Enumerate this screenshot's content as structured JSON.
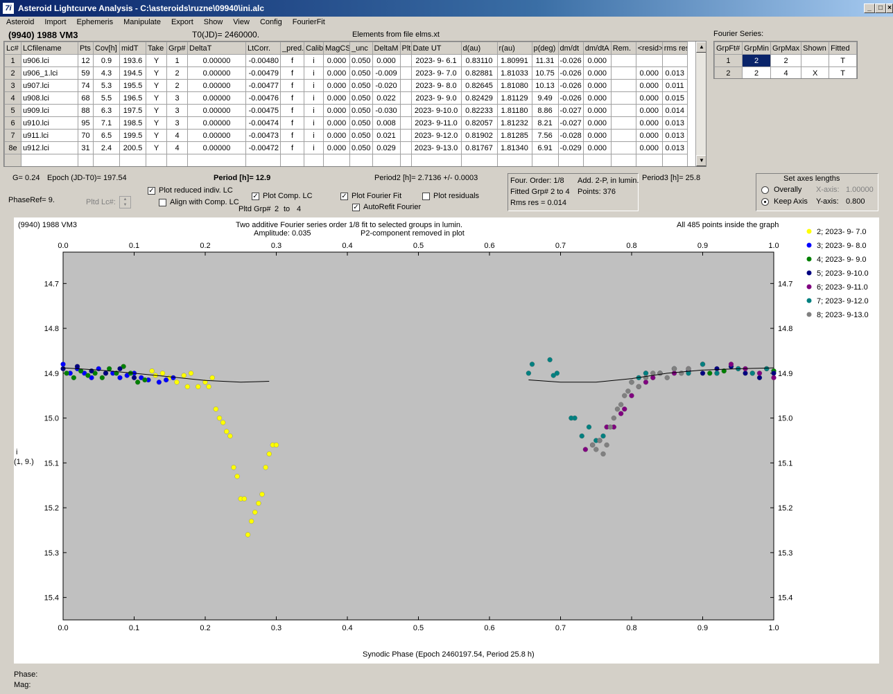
{
  "window": {
    "title": "Asteroid Lightcurve Analysis - C:\\asteroids\\ruzne\\09940\\ini.alc",
    "icon_glyph": "7i",
    "minimize": "_",
    "maximize": "□",
    "close": "×"
  },
  "menu": [
    "Asteroid",
    "Import",
    "Ephemeris",
    "Manipulate",
    "Export",
    "Show",
    "View",
    "Config",
    "FourierFit"
  ],
  "header": {
    "asteroid": "(9940) 1988 VM3",
    "t0": "T0(JD)= 2460000.",
    "elements": "Elements from file elms.xt",
    "fourier_label": "Fourier Series:"
  },
  "lc_table": {
    "columns": [
      "Lc#",
      "LCfilename",
      "Pts",
      "Cov[h]",
      "midT",
      "Take",
      "Grp#",
      "DeltaT",
      "LtCorr.",
      "_pred.",
      "Calib.",
      "MagCS",
      "_unc",
      "DeltaM",
      "Plt",
      "Date UT",
      "d(au)",
      "r(au)",
      "p(deg)",
      "dm/dt",
      "dm/dtA",
      "Rem.",
      "<resid>",
      "rms res"
    ],
    "rows": [
      [
        "1",
        "u906.lci",
        "12",
        "0.9",
        "193.6",
        "Y",
        "1",
        "0.00000",
        "-0.00480",
        "f",
        "i",
        "0.000",
        "0.050",
        "0.000",
        "",
        "2023- 9- 6.1",
        "0.83110",
        "1.80991",
        "11.31",
        "-0.026",
        "0.000",
        "",
        "",
        ""
      ],
      [
        "2",
        "u906_1.lci",
        "59",
        "4.3",
        "194.5",
        "Y",
        "2",
        "0.00000",
        "-0.00479",
        "f",
        "i",
        "0.000",
        "0.050",
        "-0.009",
        "",
        "2023- 9- 7.0",
        "0.82881",
        "1.81033",
        "10.75",
        "-0.026",
        "0.000",
        "",
        "0.000",
        "0.013"
      ],
      [
        "3",
        "u907.lci",
        "74",
        "5.3",
        "195.5",
        "Y",
        "2",
        "0.00000",
        "-0.00477",
        "f",
        "i",
        "0.000",
        "0.050",
        "-0.020",
        "",
        "2023- 9- 8.0",
        "0.82645",
        "1.81080",
        "10.13",
        "-0.026",
        "0.000",
        "",
        "0.000",
        "0.011"
      ],
      [
        "4",
        "u908.lci",
        "68",
        "5.5",
        "196.5",
        "Y",
        "3",
        "0.00000",
        "-0.00476",
        "f",
        "i",
        "0.000",
        "0.050",
        "0.022",
        "",
        "2023- 9- 9.0",
        "0.82429",
        "1.81129",
        "9.49",
        "-0.026",
        "0.000",
        "",
        "0.000",
        "0.015"
      ],
      [
        "5",
        "u909.lci",
        "88",
        "6.3",
        "197.5",
        "Y",
        "3",
        "0.00000",
        "-0.00475",
        "f",
        "i",
        "0.000",
        "0.050",
        "-0.030",
        "",
        "2023- 9-10.0",
        "0.82233",
        "1.81180",
        "8.86",
        "-0.027",
        "0.000",
        "",
        "0.000",
        "0.014"
      ],
      [
        "6",
        "u910.lci",
        "95",
        "7.1",
        "198.5",
        "Y",
        "3",
        "0.00000",
        "-0.00474",
        "f",
        "i",
        "0.000",
        "0.050",
        "0.008",
        "",
        "2023- 9-11.0",
        "0.82057",
        "1.81232",
        "8.21",
        "-0.027",
        "0.000",
        "",
        "0.000",
        "0.013"
      ],
      [
        "7",
        "u911.lci",
        "70",
        "6.5",
        "199.5",
        "Y",
        "4",
        "0.00000",
        "-0.00473",
        "f",
        "i",
        "0.000",
        "0.050",
        "0.021",
        "",
        "2023- 9-12.0",
        "0.81902",
        "1.81285",
        "7.56",
        "-0.028",
        "0.000",
        "",
        "0.000",
        "0.013"
      ],
      [
        "8e",
        "u912.lci",
        "31",
        "2.4",
        "200.5",
        "Y",
        "4",
        "0.00000",
        "-0.00472",
        "f",
        "i",
        "0.000",
        "0.050",
        "0.029",
        "",
        "2023- 9-13.0",
        "0.81767",
        "1.81340",
        "6.91",
        "-0.029",
        "0.000",
        "",
        "0.000",
        "0.013"
      ]
    ]
  },
  "fourier_table": {
    "columns": [
      "GrpFt#",
      "GrpMin",
      "GrpMax",
      "Shown",
      "Fitted"
    ],
    "rows": [
      [
        "1",
        "2",
        "2",
        "",
        "T"
      ],
      [
        "2",
        "2",
        "4",
        "X",
        "T"
      ]
    ]
  },
  "controls": {
    "g": "G= 0.24",
    "epoch": "Epoch (JD-T0)= 197.54",
    "period": "Period [h]= 12.9",
    "period2": "Period2 [h]= 2.7136 +/- 0.0003",
    "period3": "Period3 [h]= 25.8",
    "phaseref": "PhaseRef= 9.",
    "pltd_lc": "Pltd Lc#:",
    "plot_reduced": "Plot reduced indiv. LC",
    "align_comp": "Align with Comp. LC",
    "plot_comp": "Plot Comp. LC",
    "pltd_grp": "Pltd Grp#",
    "grp_from": "2",
    "grp_to_word": "to",
    "grp_to": "4",
    "plot_fourier": "Plot Fourier Fit",
    "autorefit": "AutoRefit Fourier",
    "plot_residuals": "Plot residuals",
    "check_mark": "✓",
    "four_order": "Four. Order:  1/8",
    "add2p": "Add. 2-P, in lumin.",
    "fitted_grp": "Fitted Grp# 2 to 4",
    "points": "Points: 376",
    "rms_res": "Rms res      = 0.014",
    "axes_title": "Set axes lengths",
    "overally": "Overally",
    "keep_axis": "Keep Axis",
    "xaxis_label": "X-axis:",
    "xaxis_val": "1.00000",
    "yaxis_label": "Y-axis:",
    "yaxis_val": "0.800"
  },
  "plot": {
    "title_left": "(9940) 1988 VM3",
    "title_center1": "Two additive Fourier series order 1/8 fit to selected groups in lumin.",
    "title_center2a": "Amplitude: 0.035",
    "title_center2b": "P2-component removed in plot",
    "title_right": "All 485 points inside the graph",
    "ylabel1": "i",
    "ylabel2": "(1, 9.)",
    "xlabel": "Synodic Phase (Epoch 2460197.54, Period 25.8 h)",
    "status_phase": "Phase:",
    "status_mag": "Mag:"
  },
  "chart_data": {
    "type": "scatter",
    "x_ticks": [
      "0.0",
      "0.1",
      "0.2",
      "0.3",
      "0.4",
      "0.5",
      "0.6",
      "0.7",
      "0.8",
      "0.9",
      "1.0"
    ],
    "y_ticks": [
      "14.7",
      "14.8",
      "14.9",
      "15.0",
      "15.1",
      "15.2",
      "15.3",
      "15.4"
    ],
    "xlim": [
      0,
      1
    ],
    "ylim": [
      15.45,
      14.63
    ],
    "series": [
      {
        "name": "2; 2023- 9- 7.0",
        "color": "#ffff00",
        "points": [
          [
            0.125,
            14.895
          ],
          [
            0.13,
            14.905
          ],
          [
            0.14,
            14.9
          ],
          [
            0.15,
            14.91
          ],
          [
            0.16,
            14.92
          ],
          [
            0.17,
            14.905
          ],
          [
            0.175,
            14.93
          ],
          [
            0.18,
            14.9
          ],
          [
            0.19,
            14.93
          ],
          [
            0.2,
            14.92
          ],
          [
            0.205,
            14.93
          ],
          [
            0.21,
            14.91
          ],
          [
            0.215,
            14.98
          ],
          [
            0.22,
            15.0
          ],
          [
            0.225,
            15.01
          ],
          [
            0.23,
            15.03
          ],
          [
            0.235,
            15.04
          ],
          [
            0.24,
            15.11
          ],
          [
            0.245,
            15.13
          ],
          [
            0.25,
            15.18
          ],
          [
            0.255,
            15.18
          ],
          [
            0.26,
            15.26
          ],
          [
            0.265,
            15.23
          ],
          [
            0.27,
            15.21
          ],
          [
            0.275,
            15.19
          ],
          [
            0.28,
            15.17
          ],
          [
            0.285,
            15.11
          ],
          [
            0.29,
            15.08
          ],
          [
            0.295,
            15.06
          ],
          [
            0.3,
            15.06
          ]
        ]
      },
      {
        "name": "3; 2023- 9- 8.0",
        "color": "#0000ff",
        "points": [
          [
            0.0,
            14.88
          ],
          [
            0.01,
            14.9
          ],
          [
            0.02,
            14.89
          ],
          [
            0.03,
            14.9
          ],
          [
            0.04,
            14.91
          ],
          [
            0.05,
            14.89
          ],
          [
            0.06,
            14.9
          ],
          [
            0.07,
            14.9
          ],
          [
            0.08,
            14.91
          ],
          [
            0.09,
            14.905
          ],
          [
            0.1,
            14.9
          ],
          [
            0.11,
            14.91
          ],
          [
            0.12,
            14.915
          ],
          [
            0.135,
            14.92
          ],
          [
            0.145,
            14.915
          ],
          [
            0.155,
            14.91
          ]
        ]
      },
      {
        "name": "4; 2023- 9- 9.0",
        "color": "#008000",
        "points": [
          [
            0.005,
            14.9
          ],
          [
            0.015,
            14.91
          ],
          [
            0.025,
            14.895
          ],
          [
            0.035,
            14.905
          ],
          [
            0.045,
            14.9
          ],
          [
            0.055,
            14.91
          ],
          [
            0.065,
            14.89
          ],
          [
            0.075,
            14.9
          ],
          [
            0.085,
            14.885
          ],
          [
            0.095,
            14.9
          ],
          [
            0.105,
            14.92
          ],
          [
            0.115,
            14.915
          ],
          [
            0.91,
            14.9
          ],
          [
            0.93,
            14.895
          ],
          [
            0.95,
            14.89
          ],
          [
            0.97,
            14.9
          ],
          [
            0.99,
            14.89
          ],
          [
            1.0,
            14.895
          ]
        ]
      },
      {
        "name": "5; 2023- 9-10.0",
        "color": "#000080",
        "points": [
          [
            0.0,
            14.89
          ],
          [
            0.02,
            14.885
          ],
          [
            0.04,
            14.895
          ],
          [
            0.06,
            14.9
          ],
          [
            0.08,
            14.89
          ],
          [
            0.1,
            14.91
          ],
          [
            0.82,
            14.9
          ],
          [
            0.84,
            14.9
          ],
          [
            0.86,
            14.89
          ],
          [
            0.88,
            14.895
          ],
          [
            0.9,
            14.9
          ],
          [
            0.92,
            14.89
          ],
          [
            0.94,
            14.885
          ],
          [
            0.96,
            14.9
          ],
          [
            0.98,
            14.91
          ],
          [
            1.0,
            14.9
          ]
        ]
      },
      {
        "name": "6; 2023- 9-11.0",
        "color": "#800080",
        "points": [
          [
            0.735,
            15.07
          ],
          [
            0.745,
            15.06
          ],
          [
            0.755,
            15.05
          ],
          [
            0.765,
            15.02
          ],
          [
            0.775,
            15.02
          ],
          [
            0.785,
            14.99
          ],
          [
            0.79,
            14.98
          ],
          [
            0.8,
            14.95
          ],
          [
            0.81,
            14.93
          ],
          [
            0.82,
            14.92
          ],
          [
            0.83,
            14.91
          ],
          [
            0.84,
            14.9
          ],
          [
            0.86,
            14.9
          ],
          [
            0.88,
            14.89
          ],
          [
            0.9,
            14.88
          ],
          [
            0.92,
            14.9
          ],
          [
            0.94,
            14.88
          ],
          [
            0.96,
            14.89
          ],
          [
            0.98,
            14.9
          ],
          [
            1.0,
            14.91
          ]
        ]
      },
      {
        "name": "7; 2023- 9-12.0",
        "color": "#008080",
        "points": [
          [
            0.655,
            14.9
          ],
          [
            0.66,
            14.88
          ],
          [
            0.685,
            14.87
          ],
          [
            0.69,
            14.905
          ],
          [
            0.695,
            14.9
          ],
          [
            0.715,
            15.0
          ],
          [
            0.72,
            15.0
          ],
          [
            0.73,
            15.04
          ],
          [
            0.74,
            15.02
          ],
          [
            0.75,
            15.05
          ],
          [
            0.76,
            15.04
          ],
          [
            0.8,
            14.92
          ],
          [
            0.81,
            14.91
          ],
          [
            0.82,
            14.9
          ],
          [
            0.84,
            14.9
          ],
          [
            0.86,
            14.89
          ],
          [
            0.88,
            14.9
          ],
          [
            0.9,
            14.88
          ],
          [
            0.92,
            14.9
          ],
          [
            0.95,
            14.89
          ],
          [
            0.97,
            14.9
          ],
          [
            0.99,
            14.89
          ]
        ]
      },
      {
        "name": "8; 2023- 9-13.0",
        "color": "#808080",
        "points": [
          [
            0.745,
            15.06
          ],
          [
            0.75,
            15.07
          ],
          [
            0.755,
            15.05
          ],
          [
            0.76,
            15.08
          ],
          [
            0.765,
            15.06
          ],
          [
            0.77,
            15.02
          ],
          [
            0.775,
            15.0
          ],
          [
            0.78,
            14.98
          ],
          [
            0.785,
            14.97
          ],
          [
            0.79,
            14.95
          ],
          [
            0.795,
            14.94
          ],
          [
            0.8,
            14.92
          ],
          [
            0.81,
            14.93
          ],
          [
            0.82,
            14.91
          ],
          [
            0.83,
            14.9
          ],
          [
            0.84,
            14.9
          ],
          [
            0.85,
            14.91
          ],
          [
            0.86,
            14.89
          ],
          [
            0.87,
            14.9
          ],
          [
            0.88,
            14.89
          ]
        ]
      }
    ],
    "fit_segments": [
      [
        [
          0.0,
          14.888
        ],
        [
          0.05,
          14.893
        ],
        [
          0.1,
          14.9
        ],
        [
          0.15,
          14.908
        ],
        [
          0.2,
          14.916
        ],
        [
          0.25,
          14.92
        ],
        [
          0.29,
          14.918
        ]
      ],
      [
        [
          0.655,
          14.915
        ],
        [
          0.7,
          14.92
        ],
        [
          0.75,
          14.92
        ],
        [
          0.8,
          14.912
        ],
        [
          0.85,
          14.9
        ],
        [
          0.9,
          14.893
        ],
        [
          0.95,
          14.89
        ],
        [
          1.0,
          14.888
        ]
      ]
    ]
  }
}
